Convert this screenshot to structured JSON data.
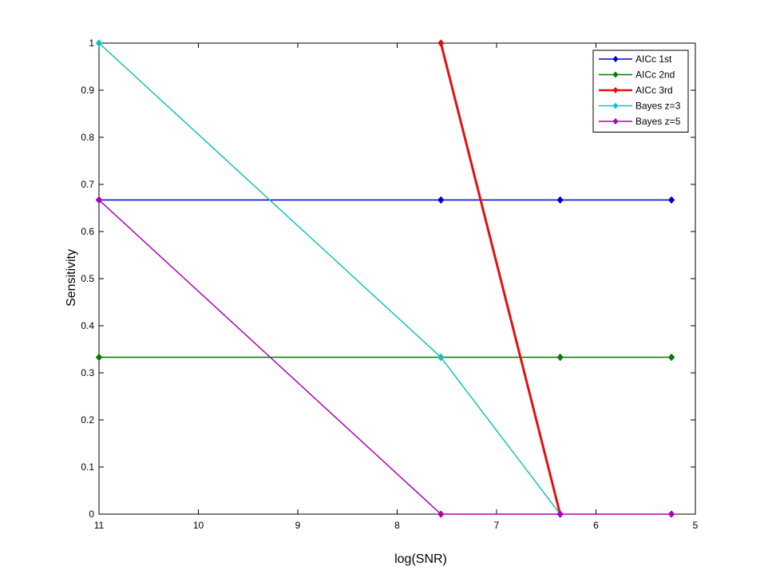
{
  "chart_data": {
    "type": "line",
    "title": "",
    "xlabel": "log(SNR)",
    "ylabel": "Sensitivity",
    "xlim": [
      11,
      5
    ],
    "ylim": [
      0,
      1
    ],
    "x_reversed": true,
    "xticks": [
      11,
      10,
      9,
      8,
      7,
      6,
      5
    ],
    "yticks": [
      0,
      0.1,
      0.2,
      0.3,
      0.4,
      0.5,
      0.6,
      0.7,
      0.8,
      0.9,
      1
    ],
    "grid": false,
    "legend_position": "top-right",
    "x": [
      11,
      7.56,
      6.36,
      5.24
    ],
    "series": [
      {
        "name": "AICc 1st",
        "color": "#0000cc",
        "values": [
          0.667,
          0.667,
          0.667,
          0.667
        ],
        "line_width": 1.5
      },
      {
        "name": "AICc 2nd",
        "color": "#007a00",
        "values": [
          0.333,
          0.333,
          0.333,
          0.333
        ],
        "line_width": 1.5
      },
      {
        "name": "AICc 3rd",
        "color": "#e01010",
        "values": [
          null,
          1.0,
          0.0,
          null
        ],
        "line_width": 3
      },
      {
        "name": "Bayes z=3",
        "color": "#16c0c0",
        "values": [
          1.0,
          0.333,
          0.0,
          null
        ],
        "line_width": 1.5
      },
      {
        "name": "Bayes z=5",
        "color": "#b000b0",
        "values": [
          0.667,
          0.0,
          0.0,
          0.0
        ],
        "line_width": 1.5
      }
    ]
  }
}
